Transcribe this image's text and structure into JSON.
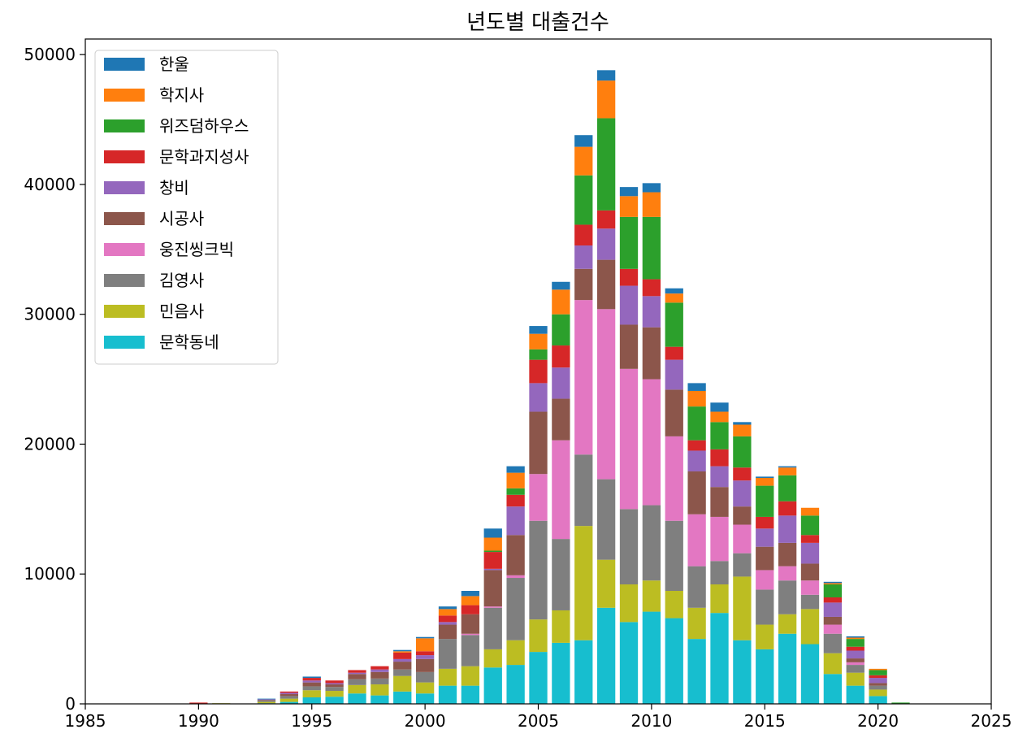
{
  "chart_data": {
    "type": "bar",
    "stacked": true,
    "title": "년도별 대출건수",
    "xlabel": "",
    "ylabel": "",
    "xlim": [
      1985,
      2025
    ],
    "ylim": [
      0,
      51200
    ],
    "xticks": [
      1985,
      1990,
      1995,
      2000,
      2005,
      2010,
      2015,
      2020,
      2025
    ],
    "yticks": [
      0,
      10000,
      20000,
      30000,
      40000,
      50000
    ],
    "legend_position": "upper-left",
    "x": [
      1990,
      1991,
      1993,
      1994,
      1995,
      1996,
      1997,
      1998,
      1999,
      2000,
      2001,
      2002,
      2003,
      2004,
      2005,
      2006,
      2007,
      2008,
      2009,
      2010,
      2011,
      2012,
      2013,
      2014,
      2015,
      2016,
      2017,
      2018,
      2019,
      2020,
      2021
    ],
    "series": [
      {
        "name": "문학동네",
        "color": "#17becf",
        "values": [
          0,
          0,
          50,
          150,
          500,
          550,
          800,
          650,
          950,
          800,
          1400,
          1400,
          2800,
          3000,
          4000,
          4700,
          4900,
          7400,
          6300,
          7100,
          6600,
          5000,
          7000,
          4900,
          4200,
          5400,
          4600,
          2300,
          1400,
          600,
          0
        ]
      },
      {
        "name": "민음사",
        "color": "#bcbd22",
        "values": [
          0,
          50,
          100,
          250,
          550,
          450,
          650,
          850,
          1200,
          850,
          1300,
          1500,
          1400,
          1900,
          2500,
          2500,
          8800,
          3700,
          2900,
          2400,
          2100,
          2400,
          2200,
          4900,
          1900,
          1500,
          2700,
          1600,
          1000,
          500,
          0
        ]
      },
      {
        "name": "김영사",
        "color": "#7f7f7f",
        "values": [
          0,
          0,
          100,
          200,
          300,
          300,
          450,
          450,
          500,
          800,
          2300,
          2400,
          3200,
          4800,
          7600,
          5500,
          5500,
          6200,
          5800,
          5800,
          5400,
          3200,
          1800,
          1800,
          2700,
          2600,
          1100,
          1500,
          600,
          300,
          0
        ]
      },
      {
        "name": "웅진씽크빅",
        "color": "#e377c2",
        "values": [
          0,
          0,
          0,
          0,
          0,
          0,
          0,
          0,
          0,
          0,
          0,
          100,
          100,
          200,
          3600,
          7600,
          11900,
          13100,
          10800,
          9700,
          6500,
          4000,
          3400,
          2200,
          1500,
          1100,
          1100,
          700,
          200,
          0,
          0
        ]
      },
      {
        "name": "시공사",
        "color": "#8c564b",
        "values": [
          0,
          0,
          50,
          150,
          300,
          200,
          400,
          500,
          600,
          1000,
          1100,
          1500,
          2800,
          3100,
          4800,
          3200,
          2400,
          3800,
          3400,
          4000,
          3600,
          3300,
          2300,
          1400,
          1800,
          1800,
          1300,
          600,
          300,
          200,
          0
        ]
      },
      {
        "name": "창비",
        "color": "#9467bd",
        "values": [
          0,
          0,
          50,
          100,
          150,
          100,
          100,
          200,
          200,
          300,
          200,
          0,
          100,
          2200,
          2200,
          2400,
          1800,
          2400,
          3000,
          2400,
          2300,
          1600,
          1600,
          2000,
          1400,
          2100,
          1600,
          1100,
          600,
          400,
          0
        ]
      },
      {
        "name": "문학과지성사",
        "color": "#d62728",
        "values": [
          100,
          0,
          0,
          100,
          200,
          200,
          200,
          250,
          500,
          300,
          500,
          700,
          1300,
          900,
          1800,
          1700,
          1600,
          1400,
          1300,
          1300,
          1000,
          800,
          1300,
          1000,
          900,
          1100,
          600,
          400,
          300,
          200,
          0
        ]
      },
      {
        "name": "위즈덤하우스",
        "color": "#2ca02c",
        "values": [
          0,
          0,
          0,
          0,
          0,
          0,
          0,
          0,
          0,
          0,
          0,
          0,
          100,
          500,
          800,
          2400,
          3800,
          7100,
          4000,
          4800,
          3400,
          2600,
          2100,
          2400,
          2400,
          2000,
          1500,
          1000,
          600,
          400,
          100
        ]
      },
      {
        "name": "학지사",
        "color": "#ff7f0e",
        "values": [
          0,
          0,
          0,
          0,
          0,
          0,
          0,
          0,
          100,
          1000,
          500,
          700,
          1000,
          1200,
          1200,
          1900,
          2200,
          2900,
          1600,
          1900,
          700,
          1200,
          800,
          900,
          600,
          600,
          600,
          100,
          100,
          100,
          0
        ]
      },
      {
        "name": "한울",
        "color": "#1f77b4",
        "values": [
          0,
          0,
          50,
          0,
          100,
          0,
          0,
          0,
          100,
          100,
          200,
          400,
          700,
          500,
          600,
          600,
          900,
          800,
          700,
          700,
          400,
          600,
          700,
          200,
          100,
          100,
          0,
          100,
          100,
          0,
          0
        ]
      }
    ],
    "legend_order": [
      "한울",
      "학지사",
      "위즈덤하우스",
      "문학과지성사",
      "창비",
      "시공사",
      "웅진씽크빅",
      "김영사",
      "민음사",
      "문학동네"
    ]
  }
}
